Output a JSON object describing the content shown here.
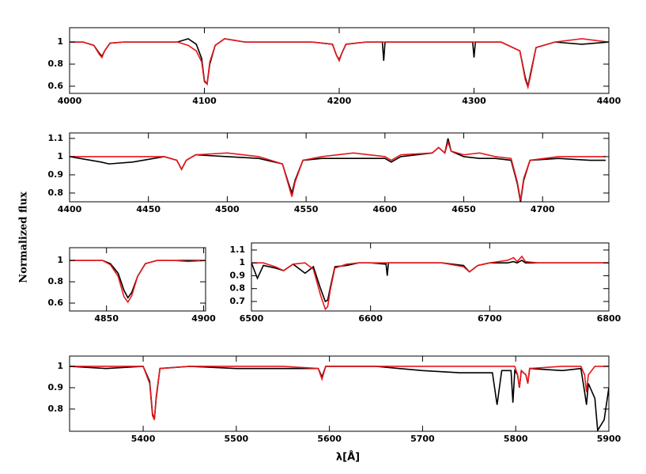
{
  "ylabel": "Normalized flux",
  "xlabel": "λ[Å]",
  "chart_data": [
    {
      "type": "line",
      "xlim": [
        4000,
        4400
      ],
      "ylim": [
        0.535,
        1.13
      ],
      "xticks": [
        4000,
        4100,
        4200,
        4300,
        4400
      ],
      "yticks": [
        0.6,
        0.8,
        1
      ],
      "x": [
        4000,
        4010,
        4018,
        4022,
        4024,
        4026,
        4030,
        4040,
        4060,
        4080,
        4088,
        4094,
        4098,
        4100,
        4102,
        4104,
        4108,
        4115,
        4130,
        4150,
        4180,
        4195,
        4198,
        4200,
        4202,
        4205,
        4220,
        4232,
        4233,
        4234,
        4250,
        4280,
        4299,
        4300,
        4301,
        4320,
        4334,
        4338,
        4340,
        4342,
        4346,
        4360,
        4380,
        4400
      ],
      "series": [
        {
          "color": "#000000",
          "values": [
            1.0,
            1.0,
            0.97,
            0.9,
            0.87,
            0.92,
            0.99,
            1.0,
            1.0,
            1.0,
            1.03,
            0.98,
            0.85,
            0.65,
            0.62,
            0.8,
            0.97,
            1.03,
            1.0,
            1.0,
            1.0,
            0.98,
            0.88,
            0.84,
            0.9,
            0.98,
            1.0,
            1.0,
            0.83,
            1.0,
            1.0,
            1.0,
            1.0,
            0.86,
            1.0,
            1.0,
            0.92,
            0.68,
            0.6,
            0.72,
            0.95,
            1.0,
            0.98,
            1.0
          ]
        },
        {
          "color": "#e8161b",
          "values": [
            1,
            1,
            0.97,
            0.89,
            0.86,
            0.92,
            0.99,
            1,
            1,
            1,
            0.97,
            0.92,
            0.82,
            0.64,
            0.62,
            0.82,
            0.97,
            1.03,
            1,
            1,
            1,
            0.98,
            0.88,
            0.83,
            0.9,
            0.98,
            1,
            1,
            1,
            1,
            1,
            1,
            1,
            1,
            1,
            1,
            0.92,
            0.66,
            0.59,
            0.7,
            0.95,
            1,
            1.03,
            1
          ]
        }
      ]
    },
    {
      "type": "line",
      "xlim": [
        4400,
        4742
      ],
      "ylim": [
        0.752,
        1.13
      ],
      "xticks": [
        4400,
        4450,
        4500,
        4550,
        4600,
        4650,
        4700
      ],
      "yticks": [
        0.8,
        0.9,
        1,
        1.1
      ],
      "x": [
        4400,
        4420,
        4425,
        4440,
        4460,
        4468,
        4471,
        4474,
        4480,
        4500,
        4520,
        4535,
        4539,
        4541,
        4543,
        4548,
        4560,
        4580,
        4600,
        4604,
        4610,
        4630,
        4634,
        4638,
        4640,
        4642,
        4650,
        4660,
        4670,
        4680,
        4684,
        4686,
        4688,
        4692,
        4710,
        4730,
        4740
      ],
      "series": [
        {
          "color": "#000000",
          "values": [
            1.0,
            0.97,
            0.96,
            0.97,
            1.0,
            0.98,
            0.93,
            0.98,
            1.01,
            1.0,
            0.99,
            0.96,
            0.85,
            0.8,
            0.87,
            0.98,
            0.99,
            0.99,
            0.99,
            0.97,
            1.0,
            1.02,
            1.05,
            1.02,
            1.1,
            1.03,
            1.0,
            0.99,
            0.99,
            0.98,
            0.85,
            0.75,
            0.87,
            0.98,
            0.99,
            0.98,
            0.98
          ]
        },
        {
          "color": "#e8161b",
          "values": [
            1,
            1,
            1,
            1,
            1,
            0.98,
            0.93,
            0.98,
            1.01,
            1.02,
            1,
            0.96,
            0.84,
            0.78,
            0.86,
            0.98,
            1,
            1.02,
            1,
            0.98,
            1.01,
            1.02,
            1.05,
            1.02,
            1.08,
            1.03,
            1.01,
            1.02,
            1,
            0.99,
            0.86,
            0.76,
            0.88,
            0.98,
            1,
            1,
            1
          ]
        }
      ]
    },
    {
      "type": "line",
      "xlim": [
        4831,
        4901
      ],
      "ylim": [
        0.526,
        1.12
      ],
      "xticks": [
        4850,
        4900
      ],
      "yticks": [
        0.6,
        0.8,
        1
      ],
      "x": [
        4831,
        4840,
        4848,
        4852,
        4856,
        4859,
        4861,
        4863,
        4866,
        4870,
        4876,
        4885,
        4892,
        4901
      ],
      "series": [
        {
          "color": "#000000",
          "values": [
            1.0,
            1.0,
            1.0,
            0.97,
            0.88,
            0.72,
            0.65,
            0.7,
            0.85,
            0.97,
            1.0,
            1.0,
            1.0,
            1.0
          ]
        },
        {
          "color": "#e8161b",
          "values": [
            1,
            1,
            1,
            0.96,
            0.85,
            0.66,
            0.61,
            0.67,
            0.85,
            0.97,
            1,
            1,
            0.99,
            1
          ]
        }
      ]
    },
    {
      "type": "line",
      "xlim": [
        6500,
        6800
      ],
      "ylim": [
        0.626,
        1.155
      ],
      "xticks": [
        6500,
        6600,
        6700,
        6800
      ],
      "yticks": [
        0.7,
        0.8,
        0.9,
        1,
        1.1
      ],
      "x": [
        6500,
        6505,
        6510,
        6520,
        6527,
        6535,
        6545,
        6552,
        6558,
        6562,
        6564,
        6566,
        6570,
        6580,
        6590,
        6600,
        6613,
        6614,
        6615,
        6630,
        6660,
        6678,
        6683,
        6690,
        6700,
        6715,
        6720,
        6723,
        6727,
        6730,
        6740,
        6770,
        6800
      ],
      "series": [
        {
          "color": "#000000",
          "values": [
            1.0,
            0.88,
            0.98,
            0.96,
            0.94,
            0.99,
            0.92,
            0.97,
            0.8,
            0.7,
            0.71,
            0.8,
            0.97,
            0.98,
            1.0,
            1.0,
            0.99,
            0.9,
            1.0,
            1.0,
            1.0,
            0.98,
            0.93,
            0.98,
            1.0,
            1.0,
            1.01,
            1.0,
            1.02,
            1.0,
            1.0,
            1.0,
            1.0
          ]
        },
        {
          "color": "#e8161b",
          "values": [
            1,
            1,
            1,
            0.97,
            0.94,
            0.99,
            1,
            0.95,
            0.75,
            0.64,
            0.66,
            0.78,
            0.96,
            0.99,
            1,
            1,
            1,
            1,
            1,
            1,
            1.0,
            0.97,
            0.93,
            0.98,
            1,
            1.02,
            1.04,
            1.01,
            1.05,
            1.01,
            1,
            1,
            1
          ]
        }
      ]
    },
    {
      "type": "line",
      "xlim": [
        5321,
        5900
      ],
      "ylim": [
        0.696,
        1.048
      ],
      "xticks": [
        5400,
        5500,
        5600,
        5700,
        5800,
        5900
      ],
      "yticks": [
        0.8,
        0.9,
        1
      ],
      "x": [
        5321,
        5360,
        5400,
        5407,
        5410,
        5412,
        5414,
        5418,
        5450,
        5500,
        5550,
        5588,
        5592,
        5596,
        5650,
        5700,
        5740,
        5775,
        5780,
        5785,
        5795,
        5797,
        5799,
        5802,
        5804,
        5806,
        5811,
        5813,
        5815,
        5850,
        5870,
        5874,
        5876,
        5878,
        5885,
        5888,
        5895,
        5900
      ],
      "series": [
        {
          "color": "#000000",
          "values": [
            1.0,
            0.99,
            1.0,
            0.93,
            0.78,
            0.75,
            0.85,
            0.99,
            1.0,
            0.99,
            0.99,
            0.99,
            0.95,
            1.0,
            1.0,
            0.98,
            0.97,
            0.97,
            0.82,
            0.98,
            0.98,
            0.83,
            0.98,
            0.96,
            0.9,
            0.98,
            0.96,
            0.92,
            0.99,
            0.98,
            0.99,
            0.88,
            0.82,
            0.92,
            0.85,
            0.7,
            0.75,
            0.9
          ]
        },
        {
          "color": "#e8161b",
          "values": [
            1,
            1,
            1,
            0.92,
            0.77,
            0.75,
            0.86,
            0.99,
            1,
            1,
            1,
            0.99,
            0.94,
            1,
            1,
            1,
            1,
            1,
            1,
            1,
            1,
            1,
            1,
            0.96,
            0.9,
            0.98,
            0.96,
            0.92,
            0.99,
            1,
            1,
            0.96,
            0.88,
            0.96,
            1,
            1,
            1,
            1
          ]
        }
      ]
    }
  ]
}
